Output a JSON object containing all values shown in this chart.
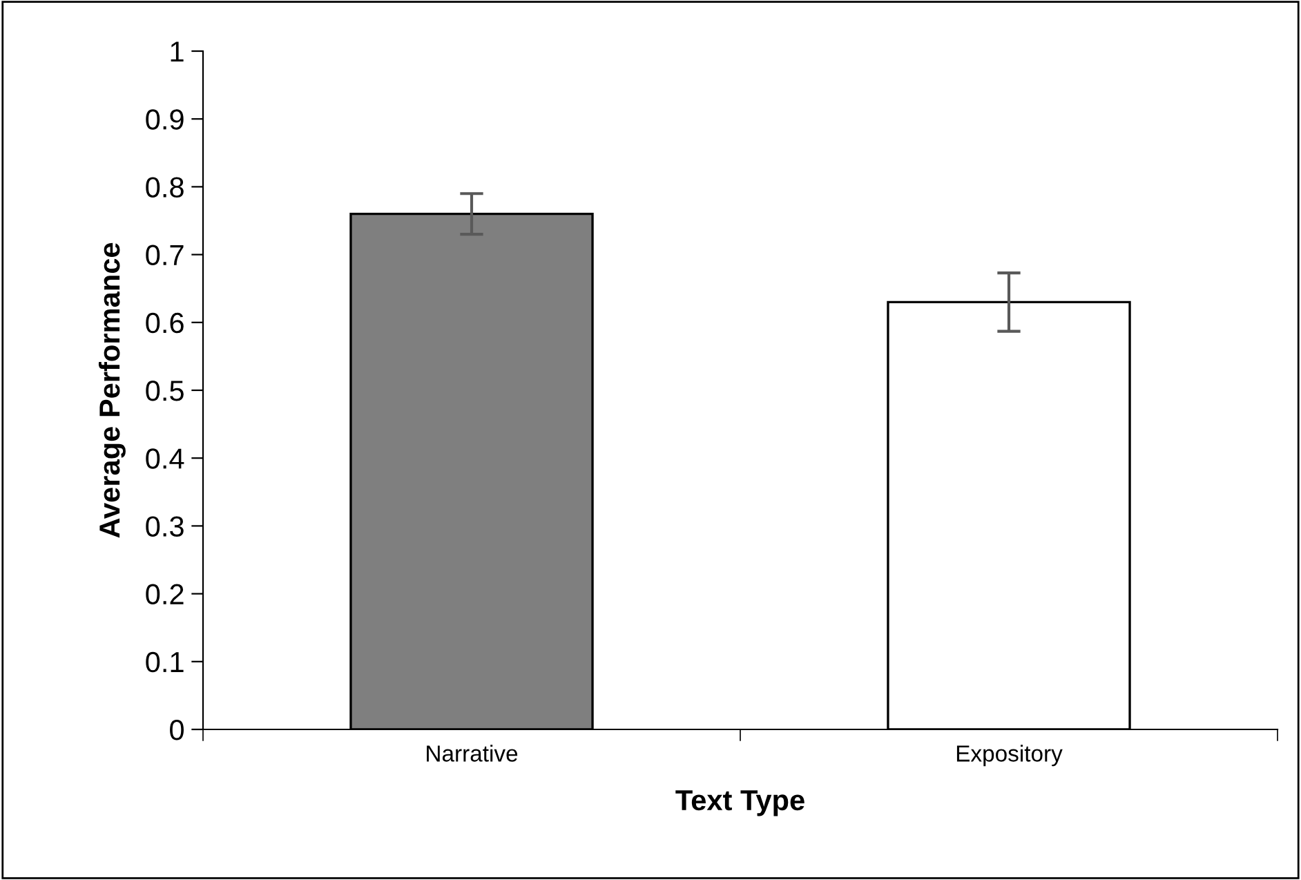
{
  "chart_data": {
    "type": "bar",
    "xlabel": "Text Type",
    "ylabel": "Average Performance",
    "categories": [
      "Narrative",
      "Expository"
    ],
    "values": [
      0.76,
      0.63
    ],
    "errors": [
      0.03,
      0.043
    ],
    "colors": [
      "#7f7f7f",
      "#ffffff"
    ],
    "ylim": [
      0,
      1
    ],
    "yticks": [
      0,
      0.1,
      0.2,
      0.3,
      0.4,
      0.5,
      0.6,
      0.7,
      0.8,
      0.9,
      1
    ],
    "grid": false,
    "legend": false
  }
}
